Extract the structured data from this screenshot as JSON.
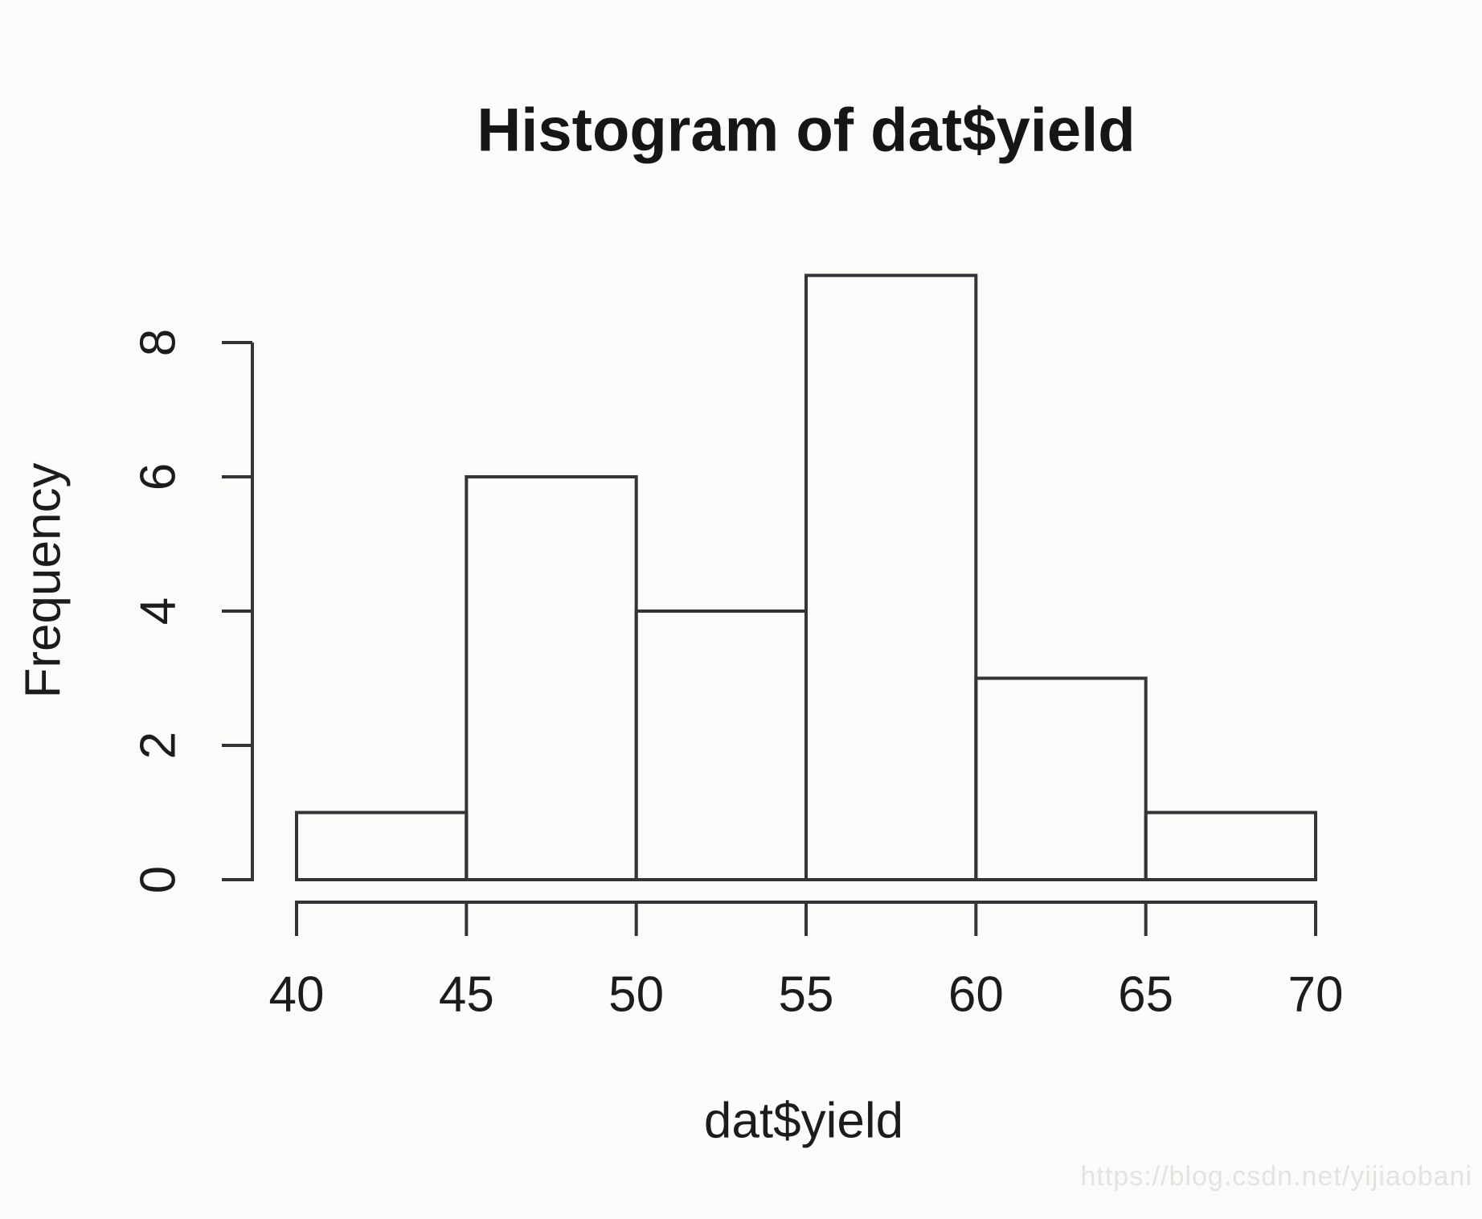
{
  "watermark": "https://blog.csdn.net/yijiaobani",
  "colors": {
    "line": "#333338",
    "text": "#1c1c1c",
    "background": "#fbfbfa",
    "watermark": "#e3e3e0"
  },
  "chart_data": {
    "type": "bar",
    "subtype": "histogram",
    "title": "Histogram of dat$yield",
    "xlabel": "dat$yield",
    "ylabel": "Frequency",
    "bin_edges": [
      40,
      45,
      50,
      55,
      60,
      65,
      70
    ],
    "counts": [
      1,
      6,
      4,
      9,
      3,
      1
    ],
    "x_ticks": [
      "40",
      "45",
      "50",
      "55",
      "60",
      "65",
      "70"
    ],
    "y_ticks": [
      "0",
      "2",
      "4",
      "6",
      "8"
    ],
    "xlim": [
      40,
      70
    ],
    "ylim": [
      0,
      9
    ],
    "y_axis_tick_range": [
      0,
      8
    ],
    "grid": false,
    "legend": null,
    "bar_fill": "none"
  }
}
